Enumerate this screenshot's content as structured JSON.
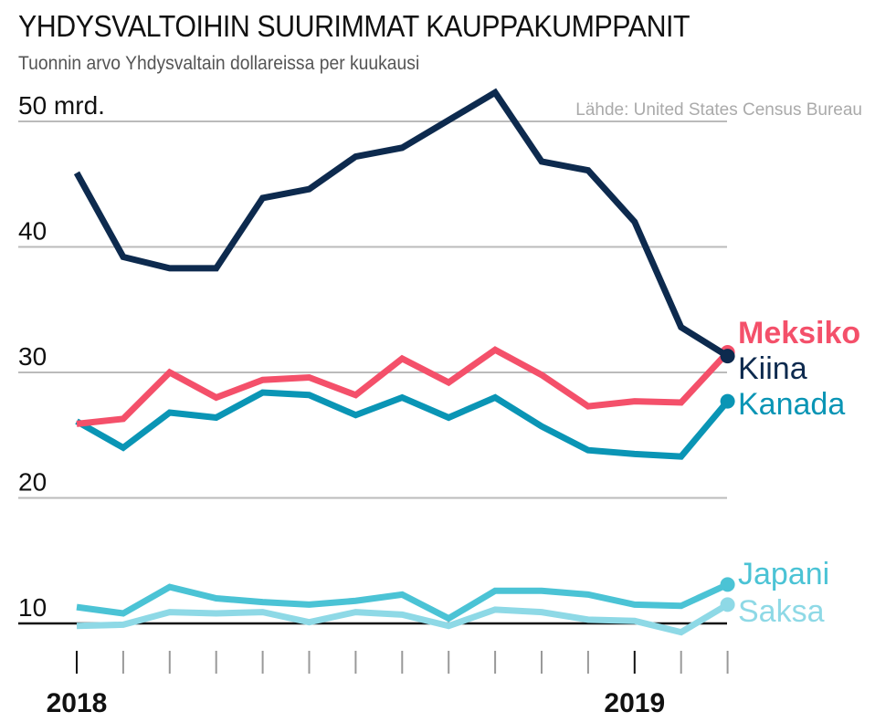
{
  "title": "YHDYSVALTOIHIN SUURIMMAT KAUPPAKUMPPANIT",
  "subtitle": "Tuonnin arvo Yhdysvaltain dollareissa per kuukausi",
  "source": "Lähde: United States Census Bureau",
  "chart_data": {
    "type": "line",
    "title": "YHDYSVALTOIHIN SUURIMMAT KAUPPAKUMPPANIT",
    "subtitle": "Tuonnin arvo Yhdysvaltain dollareissa per kuukausi",
    "x": [
      "2018-01",
      "2018-02",
      "2018-03",
      "2018-04",
      "2018-05",
      "2018-06",
      "2018-07",
      "2018-08",
      "2018-09",
      "2018-10",
      "2018-11",
      "2018-12",
      "2019-01",
      "2019-02",
      "2019-03"
    ],
    "x_tick_labels": [
      {
        "at": "2018-01",
        "label": "2018"
      },
      {
        "at": "2019-01",
        "label": "2019"
      }
    ],
    "y_ticks": [
      {
        "value": 10,
        "label": "10"
      },
      {
        "value": 20,
        "label": "20"
      },
      {
        "value": 30,
        "label": "30"
      },
      {
        "value": 40,
        "label": "40"
      },
      {
        "value": 50,
        "label": "50 mrd."
      }
    ],
    "ylim": [
      10,
      50
    ],
    "grid": true,
    "legend": "end-of-line labels",
    "series": [
      {
        "name": "Kiina",
        "color": "#0d2a4e",
        "bold": false,
        "values": [
          45.9,
          39.2,
          38.3,
          38.3,
          43.9,
          44.6,
          47.2,
          47.9,
          50.1,
          52.3,
          46.8,
          46.1,
          42.0,
          33.6,
          31.3
        ]
      },
      {
        "name": "Meksiko",
        "color": "#f4506a",
        "bold": true,
        "values": [
          25.9,
          26.3,
          30.0,
          28.0,
          29.4,
          29.6,
          28.2,
          31.1,
          29.2,
          31.8,
          29.8,
          27.3,
          27.7,
          27.6,
          31.6
        ]
      },
      {
        "name": "Kanada",
        "color": "#0a95b5",
        "bold": false,
        "values": [
          26.1,
          24.0,
          26.8,
          26.4,
          28.4,
          28.2,
          26.6,
          28.0,
          26.4,
          28.0,
          25.7,
          23.8,
          23.5,
          23.3,
          27.7
        ]
      },
      {
        "name": "Japani",
        "color": "#4bc3d5",
        "bold": false,
        "values": [
          11.3,
          10.8,
          12.9,
          12.0,
          11.7,
          11.5,
          11.8,
          12.3,
          10.4,
          12.6,
          12.6,
          12.3,
          11.5,
          11.4,
          13.1
        ]
      },
      {
        "name": "Saksa",
        "color": "#8ed9e6",
        "bold": false,
        "values": [
          9.8,
          9.9,
          10.9,
          10.8,
          10.9,
          10.1,
          10.9,
          10.7,
          9.8,
          11.1,
          10.9,
          10.3,
          10.2,
          9.3,
          11.5
        ]
      }
    ]
  }
}
